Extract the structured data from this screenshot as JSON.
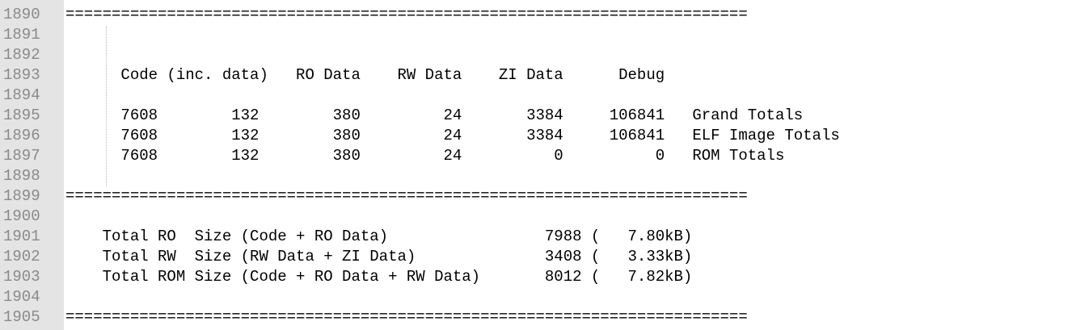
{
  "editor": {
    "lines": [
      {
        "number": "1890",
        "text": "=========================================================================="
      },
      {
        "number": "1891",
        "text": ""
      },
      {
        "number": "1892",
        "text": ""
      },
      {
        "number": "1893",
        "text": "      Code (inc. data)   RO Data    RW Data    ZI Data      Debug"
      },
      {
        "number": "1894",
        "text": ""
      },
      {
        "number": "1895",
        "text": "      7608        132        380         24       3384     106841   Grand Totals"
      },
      {
        "number": "1896",
        "text": "      7608        132        380         24       3384     106841   ELF Image Totals"
      },
      {
        "number": "1897",
        "text": "      7608        132        380         24          0          0   ROM Totals"
      },
      {
        "number": "1898",
        "text": ""
      },
      {
        "number": "1899",
        "text": "=========================================================================="
      },
      {
        "number": "1900",
        "text": ""
      },
      {
        "number": "1901",
        "text": "    Total RO  Size (Code + RO Data)                 7988 (   7.80kB)"
      },
      {
        "number": "1902",
        "text": "    Total RW  Size (RW Data + ZI Data)              3408 (   3.33kB)"
      },
      {
        "number": "1903",
        "text": "    Total ROM Size (Code + RO Data + RW Data)       8012 (   7.82kB)"
      },
      {
        "number": "1904",
        "text": ""
      },
      {
        "number": "1905",
        "text": "=========================================================================="
      }
    ]
  }
}
